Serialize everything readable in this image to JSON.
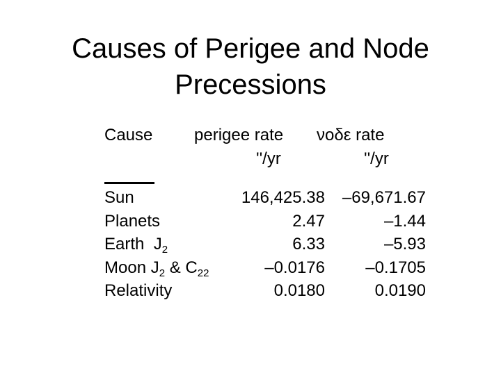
{
  "slide": {
    "title": [
      "Causes of Perigee and Node",
      "Precessions"
    ],
    "header": {
      "cause": "Cause",
      "perigee": "perigee rate",
      "perigee_unit": "''/yr",
      "node": "νοδε rate",
      "node_unit": "''/yr"
    },
    "rows": [
      {
        "cause": [
          "Sun"
        ],
        "perigee": "146,425.38",
        "node": "–69,671.67"
      },
      {
        "cause": [
          "Planets"
        ],
        "perigee": "2.47",
        "node": "–1.44"
      },
      {
        "cause": [
          "Earth  J",
          "2"
        ],
        "perigee": "6.33",
        "node": "–5.93"
      },
      {
        "cause": [
          "Moon J",
          "2",
          " & C",
          "22"
        ],
        "perigee": "–0.0176",
        "node": "–0.1705"
      },
      {
        "cause": [
          "Relativity"
        ],
        "perigee": "0.0180",
        "node": "0.0190"
      }
    ]
  }
}
